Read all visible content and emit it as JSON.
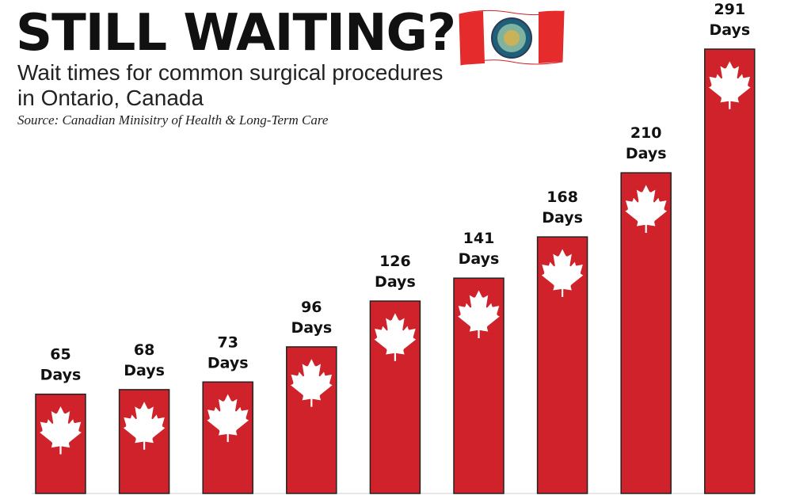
{
  "header": {
    "title": "STILL WAITING?",
    "subtitle": "Wait times for common surgical procedures in Ontario, Canada",
    "source": "Source:  Canadian Minisitry of Health & Long-Term Care"
  },
  "colors": {
    "bar": "#d0222a",
    "leaf": "#ffffff",
    "text": "#111111"
  },
  "chart_data": {
    "type": "bar",
    "title": "STILL WAITING?",
    "subtitle": "Wait times for common surgical procedures in Ontario, Canada",
    "unit_label": "Days",
    "values": [
      65,
      68,
      73,
      96,
      126,
      141,
      168,
      210,
      291
    ],
    "ylim": [
      0,
      291
    ],
    "grid": false,
    "legend": "none"
  }
}
